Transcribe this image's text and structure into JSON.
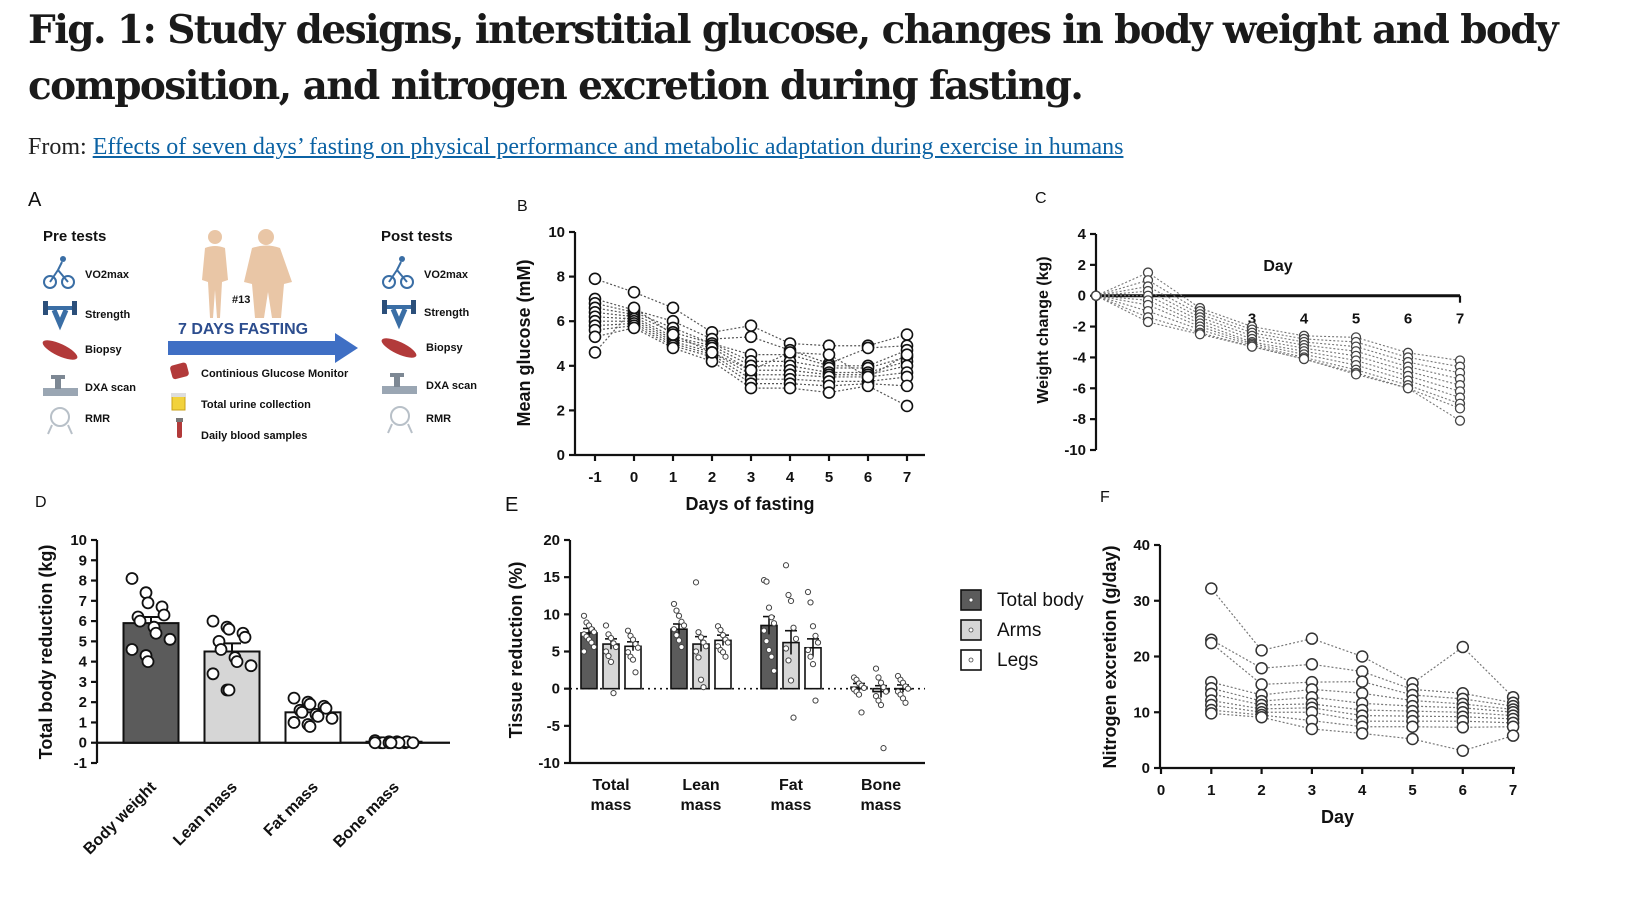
{
  "header": {
    "title": "Fig. 1: Study designs, interstitial glucose, changes in body weight and body composition, and nitrogen excretion during fasting.",
    "from_prefix": "From:",
    "from_link": "Effects of seven days’ fasting on physical performance and metabolic adaptation during exercise in humans"
  },
  "panel_a": {
    "label": "A",
    "pre_title": "Pre tests",
    "post_title": "Post tests",
    "tests": [
      "VO2max",
      "Strength",
      "Biopsy",
      "DXA scan",
      "RMR"
    ],
    "subject_id": "#13",
    "fasting_label": "7 DAYS FASTING",
    "monitoring": [
      "Continious Glucose Monitor",
      "Total urine collection",
      "Daily blood samples"
    ],
    "colors": {
      "arrow": "#3f6fc4",
      "fasting_text": "#2c4d8e",
      "muscle": "#b23a3a"
    }
  },
  "chart_data": [
    {
      "panel": "B",
      "type": "line",
      "xlabel": "Days of fasting",
      "ylabel": "Mean glucose (mM)",
      "x": [
        -1,
        0,
        1,
        2,
        3,
        4,
        5,
        6,
        7
      ],
      "xticks": [
        "-1",
        "0",
        "1",
        "2",
        "3",
        "4",
        "5",
        "6",
        "7"
      ],
      "ylim": [
        0,
        10
      ],
      "yticks": [
        0,
        2,
        4,
        6,
        8,
        10
      ],
      "series": [
        [
          7.9,
          7.3,
          6.6,
          5.5,
          5.8,
          5.0,
          4.9,
          4.9,
          5.4
        ],
        [
          7.0,
          6.5,
          6.0,
          5.2,
          5.3,
          4.7,
          4.1,
          4.8,
          4.9
        ],
        [
          6.8,
          6.4,
          5.7,
          5.0,
          4.5,
          4.5,
          4.0,
          4.0,
          4.7
        ],
        [
          6.6,
          6.3,
          5.5,
          5.0,
          4.2,
          4.2,
          3.9,
          3.9,
          4.4
        ],
        [
          6.4,
          6.2,
          5.3,
          4.9,
          4.0,
          4.0,
          3.7,
          3.7,
          4.2
        ],
        [
          6.2,
          6.1,
          5.2,
          4.8,
          3.8,
          3.8,
          3.6,
          3.6,
          4.0
        ],
        [
          6.0,
          6.0,
          5.1,
          4.6,
          3.6,
          3.6,
          3.5,
          3.5,
          3.7
        ],
        [
          5.8,
          5.9,
          5.0,
          4.5,
          3.4,
          3.4,
          3.3,
          3.3,
          3.5
        ],
        [
          5.6,
          5.8,
          4.9,
          4.4,
          3.2,
          3.2,
          3.1,
          3.2,
          3.1
        ],
        [
          5.3,
          5.7,
          4.8,
          4.2,
          3.0,
          3.0,
          2.8,
          3.1,
          2.2
        ],
        [
          4.6,
          6.6,
          5.4,
          4.6,
          3.8,
          4.6,
          4.5,
          3.5,
          4.5
        ]
      ]
    },
    {
      "panel": "C",
      "type": "line",
      "xlabel": "Day",
      "ylabel": "Weight change (kg)",
      "x": [
        0,
        1,
        2,
        3,
        4,
        5,
        6,
        7
      ],
      "xticks": [
        "3",
        "4",
        "5",
        "6",
        "7"
      ],
      "ylim": [
        -10,
        4
      ],
      "yticks": [
        -10,
        -8,
        -6,
        -4,
        -2,
        0,
        2,
        4
      ],
      "series": [
        [
          0,
          1.5,
          -0.8,
          -2.0,
          -2.6,
          -2.7,
          -3.7,
          -4.2
        ],
        [
          0,
          1.0,
          -1.0,
          -2.2,
          -2.8,
          -3.0,
          -4.0,
          -4.6
        ],
        [
          0,
          0.6,
          -1.2,
          -2.4,
          -3.0,
          -3.3,
          -4.3,
          -5.0
        ],
        [
          0,
          0.3,
          -1.4,
          -2.6,
          -3.2,
          -3.6,
          -4.6,
          -5.4
        ],
        [
          0,
          0.0,
          -1.6,
          -2.8,
          -3.4,
          -3.9,
          -4.9,
          -5.8
        ],
        [
          0,
          -0.3,
          -1.8,
          -3.0,
          -3.6,
          -4.2,
          -5.2,
          -6.2
        ],
        [
          0,
          -0.6,
          -2.0,
          -3.1,
          -3.8,
          -4.5,
          -5.5,
          -6.6
        ],
        [
          0,
          -1.0,
          -2.2,
          -3.2,
          -4.0,
          -4.8,
          -5.8,
          -7.0
        ],
        [
          0,
          -1.4,
          -2.4,
          -3.3,
          -4.1,
          -5.0,
          -6.0,
          -7.3
        ],
        [
          0,
          -1.7,
          -2.5,
          -3.3,
          -4.1,
          -5.1,
          -6.0,
          -8.1
        ]
      ]
    },
    {
      "panel": "D",
      "type": "bar",
      "ylabel": "Total body reduction (kg)",
      "categories": [
        "Body weight",
        "Lean mass",
        "Fat mass",
        "Bone mass"
      ],
      "values": [
        5.9,
        4.5,
        1.5,
        0.05
      ],
      "sem": [
        0.3,
        0.4,
        0.15,
        0.02
      ],
      "colors": [
        "#5b5b5b",
        "#d6d6d6",
        "#ffffff",
        "#ffffff"
      ],
      "ylim": [
        -1,
        10
      ],
      "yticks": [
        -1,
        0,
        1,
        2,
        3,
        4,
        5,
        6,
        7,
        8,
        9,
        10
      ],
      "points": [
        [
          8.1,
          7.4,
          6.9,
          6.7,
          6.3,
          6.2,
          6.0,
          5.7,
          5.4,
          5.1,
          4.6,
          4.3,
          4.0
        ],
        [
          6.0,
          5.7,
          5.6,
          5.4,
          5.2,
          5.0,
          4.6,
          4.2,
          4.0,
          3.8,
          3.4,
          2.6,
          2.6
        ],
        [
          2.2,
          2.0,
          1.9,
          1.8,
          1.7,
          1.6,
          1.5,
          1.4,
          1.3,
          1.2,
          1.0,
          0.9,
          0.8
        ],
        [
          0.1,
          0.05,
          0.0,
          0.0,
          0.05,
          0.0,
          0.0,
          0.05,
          0.0,
          0.0,
          0.0,
          0.0,
          0.0
        ]
      ]
    },
    {
      "panel": "E",
      "type": "bar",
      "ylabel": "Tissue reduction (%)",
      "categories": [
        "Total mass",
        "Lean mass",
        "Fat mass",
        "Bone mass"
      ],
      "series": [
        {
          "name": "Total body",
          "values": [
            7.5,
            8.0,
            8.5,
            0.2
          ],
          "sem": [
            0.6,
            0.7,
            1.2,
            0.5
          ],
          "color": "#5b5b5b"
        },
        {
          "name": "Arms",
          "values": [
            6.0,
            6.0,
            6.2,
            -0.4
          ],
          "sem": [
            0.7,
            1.0,
            1.6,
            0.8
          ],
          "color": "#d6d6d6"
        },
        {
          "name": "Legs",
          "values": [
            5.7,
            6.5,
            5.5,
            0.0
          ],
          "sem": [
            0.6,
            0.7,
            1.2,
            0.5
          ],
          "color": "#ffffff"
        }
      ],
      "points": [
        [
          [
            9.8,
            8.9,
            8.5,
            8.0,
            7.6,
            7.3,
            7.0,
            6.6,
            6.2,
            5.6,
            5.0
          ],
          [
            11.4,
            10.5,
            9.8,
            9.0,
            8.5,
            8.0,
            7.2,
            6.5,
            5.6
          ],
          [
            14.6,
            14.4,
            10.9,
            9.6,
            8.8,
            7.8,
            6.4,
            5.2,
            4.3,
            2.4
          ],
          [
            1.5,
            1.2,
            0.7,
            0.4,
            0.1,
            -0.1,
            -0.4,
            -0.8,
            -3.2
          ]
        ],
        [
          [
            8.5,
            7.3,
            6.8,
            6.1,
            5.6,
            5.0,
            4.4,
            3.6,
            -0.6
          ],
          [
            14.3,
            7.6,
            6.9,
            6.2,
            5.7,
            5.0,
            4.2,
            1.2,
            0.2
          ],
          [
            16.6,
            12.6,
            11.8,
            8.2,
            6.7,
            5.4,
            3.8,
            1.1,
            -3.9
          ],
          [
            2.7,
            1.5,
            0.8,
            0.2,
            -0.4,
            -1.0,
            -1.6,
            -2.2,
            -8.0
          ]
        ],
        [
          [
            7.8,
            7.1,
            6.6,
            6.0,
            5.5,
            4.9,
            4.3,
            3.9,
            2.2
          ],
          [
            8.4,
            7.9,
            7.2,
            6.6,
            6.2,
            5.7,
            5.2,
            4.9,
            4.3
          ],
          [
            13.0,
            11.6,
            8.4,
            7.1,
            6.2,
            5.2,
            4.3,
            3.3,
            -1.6
          ],
          [
            1.7,
            1.2,
            0.8,
            0.3,
            0.0,
            -0.4,
            -0.8,
            -1.3,
            -1.9
          ]
        ]
      ],
      "ylim": [
        -10,
        20
      ],
      "yticks": [
        -10,
        -5,
        0,
        5,
        10,
        15,
        20
      ]
    },
    {
      "panel": "F",
      "type": "line",
      "xlabel": "Day",
      "ylabel": "Nitrogen excretion (g/day)",
      "x": [
        1,
        2,
        3,
        4,
        5,
        6,
        7
      ],
      "xticks": [
        "0",
        "1",
        "2",
        "3",
        "4",
        "5",
        "6",
        "7"
      ],
      "ylim": [
        0,
        40
      ],
      "yticks": [
        0,
        10,
        20,
        30,
        40
      ],
      "series": [
        [
          32.2,
          21.1,
          23.2,
          20.0,
          15.2,
          21.7,
          12.7
        ],
        [
          23.0,
          17.9,
          18.6,
          17.3,
          14.1,
          13.4,
          11.7
        ],
        [
          22.4,
          15.0,
          15.4,
          15.5,
          13.1,
          12.4,
          11.1
        ],
        [
          15.4,
          13.1,
          14.1,
          13.4,
          12.1,
          11.5,
          10.5
        ],
        [
          14.3,
          12.0,
          12.7,
          11.6,
          11.1,
          10.8,
          10.0
        ],
        [
          13.3,
          11.3,
          11.5,
          10.4,
          10.2,
          10.0,
          9.4
        ],
        [
          12.1,
          10.6,
          10.8,
          9.4,
          9.3,
          9.2,
          8.8
        ],
        [
          11.3,
          10.0,
          10.0,
          8.4,
          8.4,
          8.4,
          8.1
        ],
        [
          10.4,
          9.5,
          8.5,
          7.4,
          7.4,
          7.3,
          7.4
        ],
        [
          9.8,
          9.1,
          7.0,
          6.2,
          5.2,
          3.1,
          5.8
        ]
      ]
    }
  ]
}
